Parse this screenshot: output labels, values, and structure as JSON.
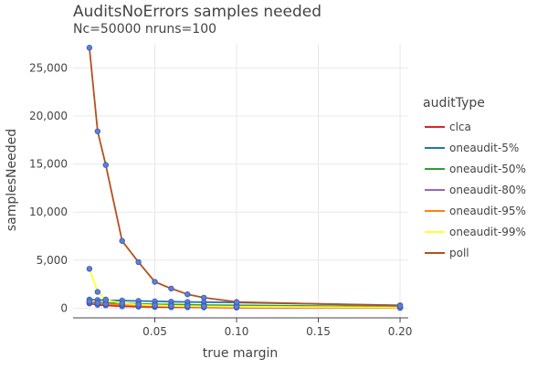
{
  "chart_data": {
    "type": "line",
    "title": "AuditsNoErrors samples needed",
    "subtitle": "Nc=50000 nruns=100",
    "xlabel": "true margin",
    "ylabel": "samplesNeeded",
    "xlim": [
      0.0,
      0.205
    ],
    "ylim": [
      -1000,
      27500
    ],
    "x_ticks": [
      0.05,
      0.1,
      0.15,
      0.2
    ],
    "x_tick_labels": [
      "0.05",
      "0.10",
      "0.15",
      "0.20"
    ],
    "y_ticks": [
      0,
      5000,
      10000,
      15000,
      20000,
      25000
    ],
    "y_tick_labels": [
      "0",
      "5,000",
      "10,000",
      "15,000",
      "20,000",
      "25,000"
    ],
    "grid": true,
    "legend_title": "auditType",
    "legend_position": "right",
    "marker_color": "#5b7fd6",
    "x": [
      0.01,
      0.015,
      0.02,
      0.03,
      0.04,
      0.05,
      0.06,
      0.07,
      0.08,
      0.1,
      0.2
    ],
    "series": [
      {
        "name": "clca",
        "color": "#d62728",
        "values": [
          500,
          350,
          300,
          200,
          160,
          130,
          110,
          100,
          90,
          70,
          40
        ]
      },
      {
        "name": "oneaudit-5%",
        "color": "#1f77b4",
        "values": [
          900,
          860,
          830,
          800,
          760,
          720,
          680,
          650,
          630,
          600,
          300
        ]
      },
      {
        "name": "oneaudit-50%",
        "color": "#2ca02c",
        "values": [
          650,
          600,
          560,
          500,
          460,
          420,
          390,
          360,
          330,
          300,
          150
        ]
      },
      {
        "name": "oneaudit-80%",
        "color": "#9467bd",
        "values": [
          600,
          480,
          420,
          360,
          300,
          260,
          230,
          210,
          200,
          170,
          90
        ]
      },
      {
        "name": "oneaudit-95%",
        "color": "#ff7f0e",
        "values": [
          700,
          550,
          450,
          350,
          280,
          240,
          200,
          180,
          160,
          130,
          60
        ]
      },
      {
        "name": "oneaudit-99%",
        "color": "#ffff33",
        "values": [
          4100,
          1700,
          900,
          500,
          380,
          300,
          250,
          220,
          200,
          160,
          70
        ]
      },
      {
        "name": "poll",
        "color": "#b5501f",
        "values": [
          27100,
          18400,
          14900,
          7000,
          4800,
          2750,
          2050,
          1450,
          1100,
          650,
          240
        ]
      }
    ]
  }
}
